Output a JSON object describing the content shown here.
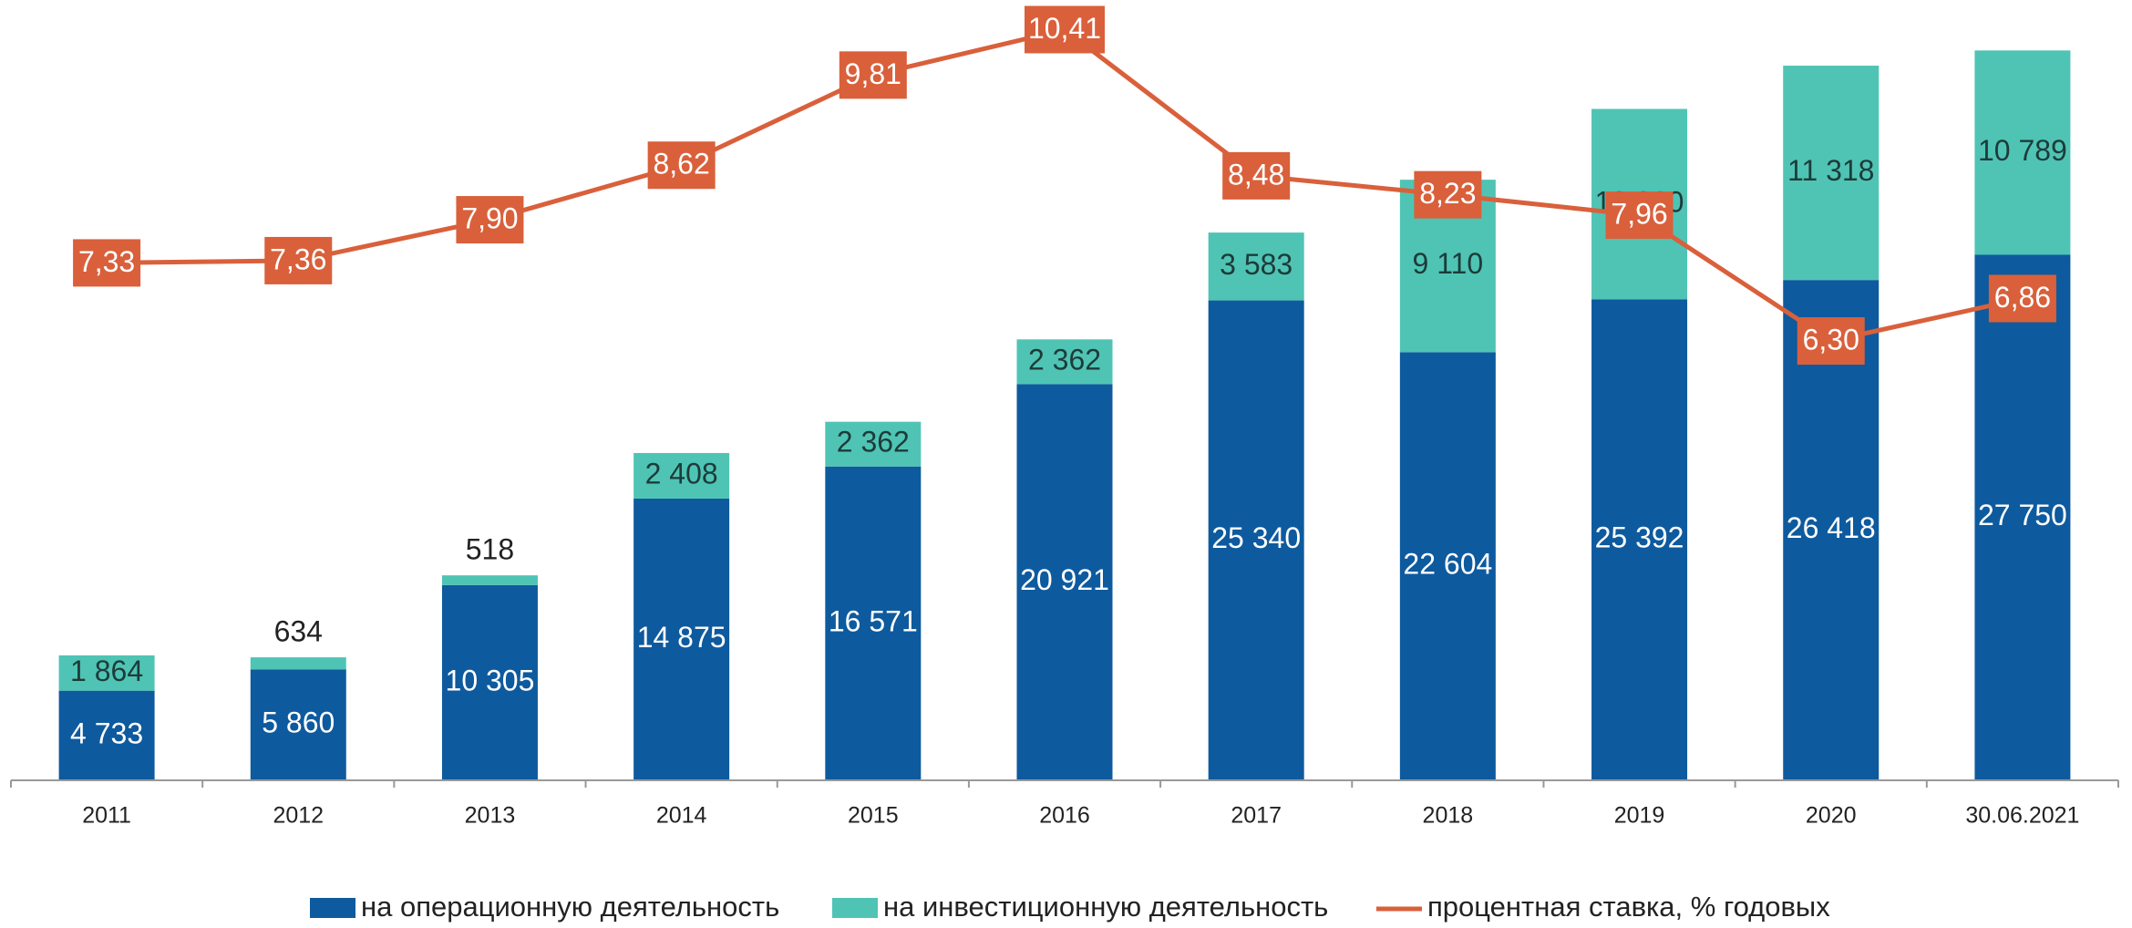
{
  "chart_data": {
    "type": "bar-line",
    "categories": [
      "2011",
      "2012",
      "2013",
      "2014",
      "2015",
      "2016",
      "2017",
      "2018",
      "2019",
      "2020",
      "30.06.2021"
    ],
    "stacked": true,
    "ylim": [
      0,
      40000
    ],
    "y2lim": [
      0.5,
      10.5
    ],
    "series": [
      {
        "name": "на операционную деятельность",
        "color": "#0e5a9e",
        "type": "bar",
        "values": [
          4733,
          5860,
          10305,
          14875,
          16571,
          20921,
          25340,
          22604,
          25392,
          26418,
          27750
        ],
        "value_labels": [
          "4 733",
          "5 860",
          "10 305",
          "14 875",
          "16 571",
          "20 921",
          "25 340",
          "22 604",
          "25 392",
          "26 418",
          "27 750"
        ]
      },
      {
        "name": "на инвестиционную деятельность",
        "color": "#4fc4b4",
        "type": "bar",
        "values": [
          1864,
          634,
          518,
          2408,
          2362,
          2362,
          3583,
          9110,
          10060,
          11318,
          10789
        ],
        "value_labels": [
          "1 864",
          "634",
          "518",
          "2 408",
          "2 362",
          "2 362",
          "3 583",
          "9 110",
          "10 060",
          "11 318",
          "10 789"
        ]
      },
      {
        "name": "процентная ставка, % годовых",
        "color": "#d9603b",
        "type": "line",
        "axis": "y2",
        "values": [
          7.33,
          7.36,
          7.9,
          8.62,
          9.81,
          10.41,
          8.48,
          8.23,
          7.96,
          6.3,
          6.86
        ],
        "value_labels": [
          "7,33",
          "7,36",
          "7,90",
          "8,62",
          "9,81",
          "10,41",
          "8,48",
          "8,23",
          "7,96",
          "6,30",
          "6,86"
        ]
      }
    ]
  }
}
